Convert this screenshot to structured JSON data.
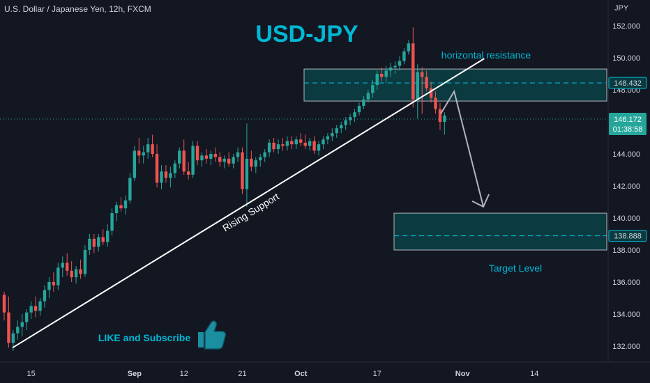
{
  "header": {
    "symbol_line": "U.S. Dollar / Japanese Yen, 12h, FXCM",
    "price_unit": "JPY"
  },
  "chart_data": {
    "type": "candlestick",
    "title": "USD-JPY",
    "y_axis": {
      "range": [
        131.0,
        153.0
      ],
      "ticks": [
        "152.000",
        "150.000",
        "148.000",
        "146.000",
        "144.000",
        "142.000",
        "140.000",
        "138.000",
        "136.000",
        "134.000",
        "132.000"
      ]
    },
    "x_axis": {
      "tick_labels": [
        "15",
        "Sep",
        "12",
        "21",
        "Oct",
        "17",
        "Nov",
        "14"
      ],
      "tick_index": [
        6,
        29,
        40,
        53,
        66,
        83,
        102,
        118
      ]
    },
    "current_price": {
      "label": "146.172",
      "value": 146.172,
      "countdown": "01:38:58"
    },
    "levels": [
      {
        "label": "148.432",
        "value": 148.432,
        "zone_low": 147.3,
        "zone_high": 149.3,
        "name": "horizontal resistance"
      },
      {
        "label": "138.888",
        "value": 138.888,
        "zone_low": 138.0,
        "zone_high": 140.3,
        "name": "Target Level"
      }
    ],
    "trendline": {
      "label": "Rising Support",
      "start": [
        0,
        131.9
      ],
      "end": [
        107,
        149.95
      ]
    },
    "projection": {
      "path": [
        [
          99,
          146.5
        ],
        [
          102,
          147.9
        ],
        [
          108.5,
          140.7
        ]
      ]
    },
    "annotations": [
      "LIKE and Subscribe"
    ],
    "candles": [
      [
        135.2,
        135.4,
        133.6,
        134.1
      ],
      [
        134.1,
        135.1,
        131.9,
        132.2
      ],
      [
        132.2,
        133.0,
        131.7,
        132.8
      ],
      [
        132.8,
        133.6,
        132.4,
        133.2
      ],
      [
        133.2,
        134.0,
        132.6,
        133.5
      ],
      [
        133.5,
        134.3,
        133.0,
        134.1
      ],
      [
        134.1,
        134.8,
        133.7,
        134.5
      ],
      [
        134.5,
        135.1,
        133.8,
        134.2
      ],
      [
        134.2,
        135.0,
        133.9,
        134.8
      ],
      [
        134.8,
        135.8,
        134.4,
        135.5
      ],
      [
        135.5,
        136.3,
        135.0,
        136.0
      ],
      [
        136.0,
        136.6,
        135.4,
        135.8
      ],
      [
        135.8,
        137.2,
        135.5,
        136.9
      ],
      [
        136.9,
        137.6,
        136.3,
        137.2
      ],
      [
        137.2,
        137.8,
        136.4,
        136.7
      ],
      [
        136.7,
        137.3,
        136.0,
        136.3
      ],
      [
        136.3,
        137.0,
        135.9,
        136.8
      ],
      [
        136.8,
        137.4,
        136.2,
        136.5
      ],
      [
        136.5,
        138.3,
        136.3,
        138.0
      ],
      [
        138.0,
        139.0,
        137.7,
        138.7
      ],
      [
        138.7,
        139.0,
        137.8,
        138.2
      ],
      [
        138.2,
        139.0,
        137.9,
        138.8
      ],
      [
        138.8,
        139.3,
        138.3,
        138.5
      ],
      [
        138.5,
        139.6,
        138.2,
        139.2
      ],
      [
        139.2,
        140.6,
        138.9,
        140.3
      ],
      [
        140.3,
        141.0,
        139.8,
        140.8
      ],
      [
        140.8,
        141.3,
        140.4,
        140.6
      ],
      [
        140.6,
        141.4,
        140.2,
        141.1
      ],
      [
        141.1,
        142.8,
        140.9,
        142.5
      ],
      [
        142.5,
        144.5,
        142.3,
        144.2
      ],
      [
        144.2,
        145.0,
        143.4,
        143.9
      ],
      [
        143.9,
        144.5,
        143.4,
        144.1
      ],
      [
        144.1,
        145.0,
        143.7,
        144.6
      ],
      [
        144.6,
        145.2,
        143.8,
        144.0
      ],
      [
        144.0,
        144.6,
        141.9,
        142.2
      ],
      [
        142.2,
        143.3,
        141.8,
        142.9
      ],
      [
        142.9,
        143.3,
        142.2,
        142.5
      ],
      [
        142.5,
        143.2,
        141.9,
        142.8
      ],
      [
        142.8,
        143.6,
        142.5,
        143.4
      ],
      [
        143.4,
        144.4,
        143.1,
        144.2
      ],
      [
        144.2,
        144.9,
        142.7,
        142.9
      ],
      [
        142.9,
        143.5,
        142.4,
        142.7
      ],
      [
        142.7,
        144.8,
        142.5,
        144.5
      ],
      [
        144.5,
        144.8,
        143.3,
        143.6
      ],
      [
        143.6,
        144.1,
        143.2,
        143.9
      ],
      [
        143.9,
        144.3,
        143.4,
        143.7
      ],
      [
        143.7,
        144.2,
        143.3,
        144.0
      ],
      [
        144.0,
        144.4,
        143.5,
        143.8
      ],
      [
        143.8,
        144.1,
        143.2,
        143.5
      ],
      [
        143.5,
        143.9,
        143.1,
        143.7
      ],
      [
        143.7,
        144.1,
        143.2,
        143.4
      ],
      [
        143.4,
        144.0,
        143.1,
        143.8
      ],
      [
        143.8,
        144.4,
        143.5,
        144.1
      ],
      [
        144.1,
        144.4,
        141.5,
        141.8
      ],
      [
        141.8,
        145.9,
        140.7,
        143.7
      ],
      [
        143.7,
        144.2,
        142.9,
        143.2
      ],
      [
        143.2,
        143.8,
        142.8,
        143.6
      ],
      [
        143.6,
        144.0,
        143.2,
        143.8
      ],
      [
        143.8,
        144.3,
        143.5,
        144.1
      ],
      [
        144.1,
        144.9,
        143.8,
        144.7
      ],
      [
        144.7,
        145.0,
        144.1,
        144.3
      ],
      [
        144.3,
        144.9,
        144.0,
        144.6
      ],
      [
        144.6,
        145.0,
        144.2,
        144.5
      ],
      [
        144.5,
        145.1,
        144.2,
        144.8
      ],
      [
        144.8,
        145.1,
        144.3,
        144.6
      ],
      [
        144.6,
        145.1,
        144.3,
        144.9
      ],
      [
        144.9,
        145.3,
        144.5,
        144.7
      ],
      [
        144.7,
        145.2,
        144.3,
        144.5
      ],
      [
        144.5,
        145.0,
        144.2,
        144.8
      ],
      [
        144.8,
        145.1,
        144.0,
        144.2
      ],
      [
        144.2,
        144.8,
        143.9,
        144.6
      ],
      [
        144.6,
        145.1,
        144.3,
        144.9
      ],
      [
        144.9,
        145.3,
        144.6,
        145.1
      ],
      [
        145.1,
        145.6,
        144.8,
        145.3
      ],
      [
        145.3,
        145.8,
        145.0,
        145.6
      ],
      [
        145.6,
        146.0,
        145.3,
        145.8
      ],
      [
        145.8,
        146.3,
        145.5,
        146.1
      ],
      [
        146.1,
        146.5,
        145.8,
        146.3
      ],
      [
        146.3,
        146.8,
        146.0,
        146.6
      ],
      [
        146.6,
        147.2,
        146.4,
        147.0
      ],
      [
        147.0,
        147.6,
        146.8,
        147.4
      ],
      [
        147.4,
        148.0,
        147.2,
        147.8
      ],
      [
        147.8,
        148.6,
        147.5,
        148.3
      ],
      [
        148.3,
        149.2,
        148.0,
        149.0
      ],
      [
        149.0,
        149.4,
        148.5,
        148.8
      ],
      [
        148.8,
        149.5,
        148.4,
        149.2
      ],
      [
        149.2,
        149.7,
        148.8,
        149.4
      ],
      [
        149.4,
        149.8,
        149.0,
        149.5
      ],
      [
        149.5,
        150.1,
        149.2,
        149.8
      ],
      [
        149.8,
        150.6,
        149.6,
        150.4
      ],
      [
        150.4,
        151.1,
        150.2,
        150.9
      ],
      [
        150.9,
        151.9,
        146.9,
        147.4
      ],
      [
        147.4,
        149.6,
        146.2,
        149.1
      ],
      [
        149.1,
        149.4,
        146.5,
        148.8
      ],
      [
        148.8,
        149.2,
        147.9,
        148.1
      ],
      [
        148.1,
        148.5,
        147.2,
        147.5
      ],
      [
        147.5,
        147.9,
        146.5,
        146.8
      ],
      [
        146.8,
        147.2,
        145.5,
        146.0
      ],
      [
        146.0,
        146.6,
        145.2,
        146.4
      ]
    ]
  },
  "colors": {
    "background": "#131722",
    "up": "#26a69a",
    "down": "#ef5350",
    "accent": "#00b8d4",
    "trendline": "#ffffff",
    "projection": "#b2b5be",
    "zone_fill": "#0b3a40",
    "text": "#d1d4dc"
  },
  "icons": {
    "like": "thumbs-up-icon"
  }
}
